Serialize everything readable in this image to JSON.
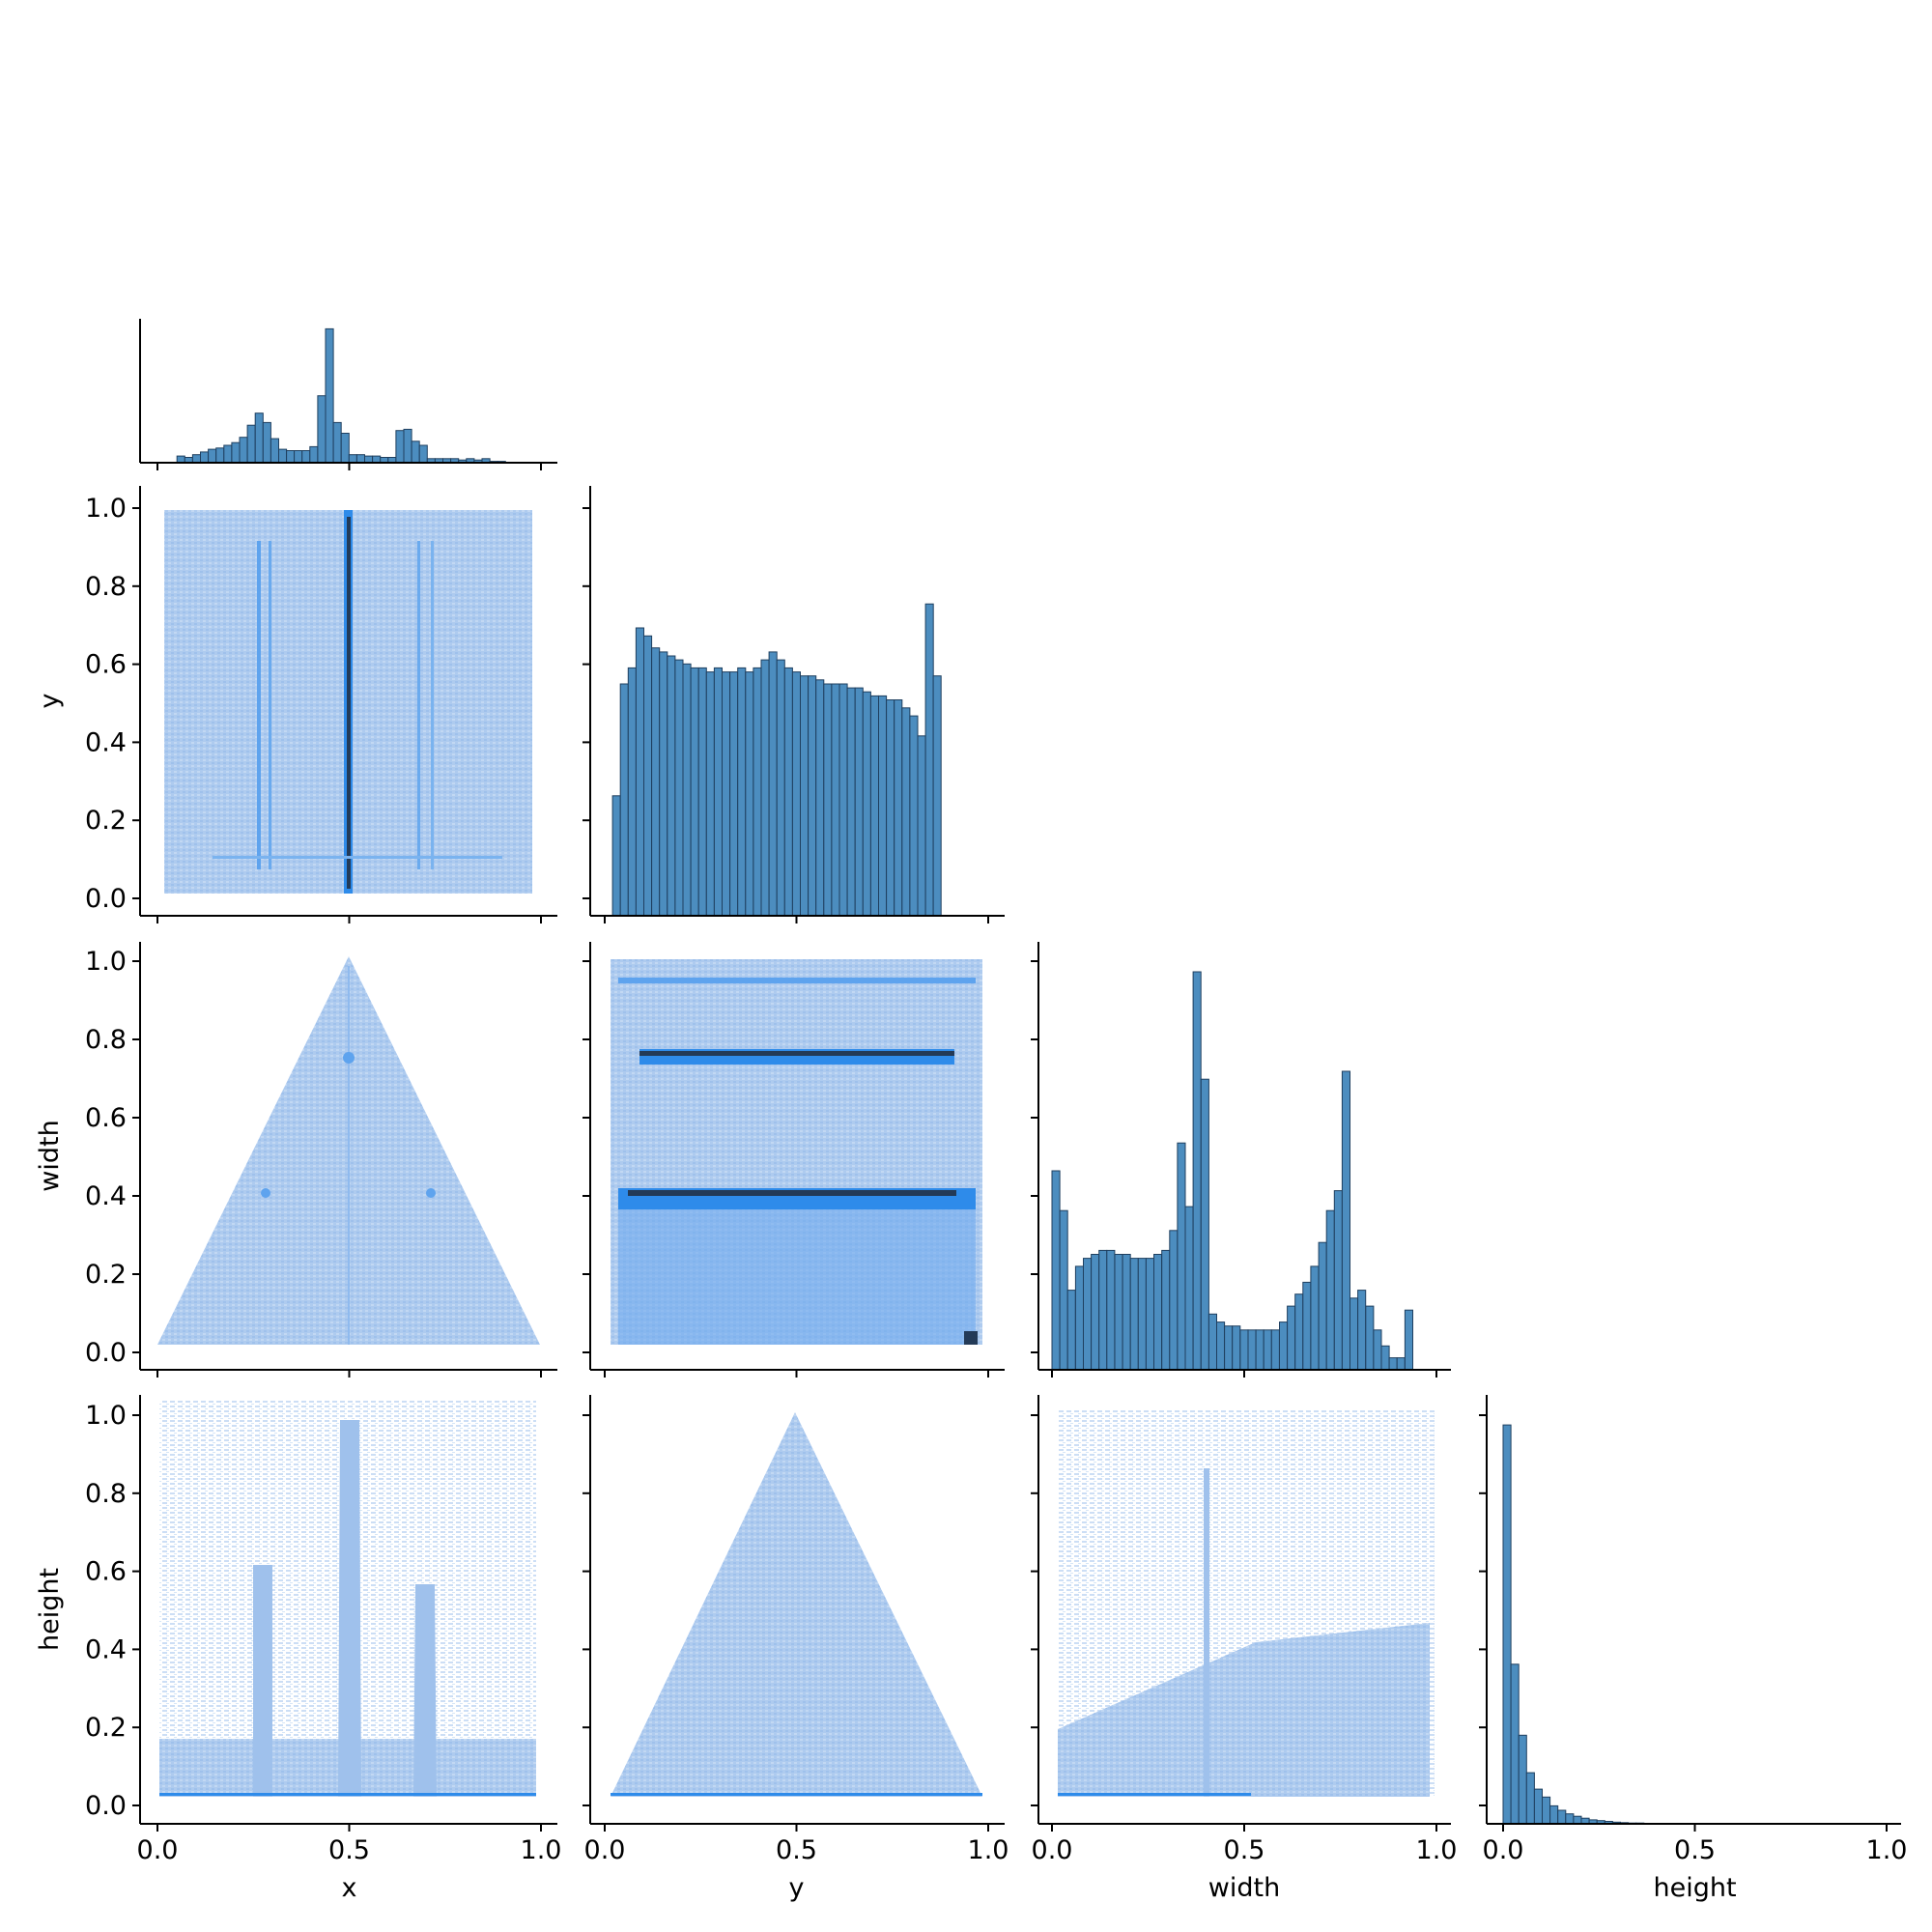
{
  "chart_data": {
    "type": "heatmap",
    "layout": "pairplot-corner",
    "variables": [
      "x",
      "y",
      "width",
      "height"
    ],
    "axis_labels": [
      "x",
      "y",
      "width",
      "height"
    ],
    "ticks": [
      "0.0",
      "0.2",
      "0.4",
      "0.6",
      "0.8",
      "1.0"
    ],
    "xticks": [
      "0.0",
      "0.5",
      "1.0"
    ],
    "range": [
      0,
      1
    ],
    "colors": {
      "hist_fill": "#4c8dbf",
      "hist_edge": "#1f3f5f",
      "heat_light": "#aecbef",
      "heat_mid": "#2e8bea",
      "heat_dark": "#233a57"
    },
    "diagonal_histograms": [
      {
        "variable": "x",
        "bin_width": 0.0204,
        "bin_start": 0.01,
        "counts": [
          0,
          0,
          0.05,
          0.04,
          0.06,
          0.08,
          0.1,
          0.11,
          0.13,
          0.15,
          0.19,
          0.28,
          0.37,
          0.3,
          0.18,
          0.1,
          0.09,
          0.09,
          0.09,
          0.12,
          0.5,
          1.0,
          0.3,
          0.22,
          0.06,
          0.06,
          0.05,
          0.05,
          0.04,
          0.04,
          0.24,
          0.25,
          0.16,
          0.13,
          0.03,
          0.03,
          0.03,
          0.03,
          0.02,
          0.03,
          0.02,
          0.03,
          0.01,
          0.01,
          0,
          0,
          0
        ]
      },
      {
        "variable": "y",
        "bin_width": 0.0204,
        "bin_start": 0.0,
        "counts": [
          0,
          0.3,
          0.58,
          0.62,
          0.72,
          0.7,
          0.67,
          0.66,
          0.65,
          0.64,
          0.63,
          0.62,
          0.62,
          0.61,
          0.62,
          0.61,
          0.61,
          0.62,
          0.61,
          0.62,
          0.64,
          0.66,
          0.64,
          0.62,
          0.61,
          0.6,
          0.6,
          0.59,
          0.58,
          0.58,
          0.58,
          0.57,
          0.57,
          0.56,
          0.55,
          0.55,
          0.54,
          0.54,
          0.52,
          0.5,
          0.45,
          0.78,
          0.6
        ]
      },
      {
        "variable": "width",
        "bin_width": 0.0204,
        "bin_start": 0.0,
        "counts": [
          0.5,
          0.4,
          0.2,
          0.26,
          0.28,
          0.29,
          0.3,
          0.3,
          0.29,
          0.29,
          0.28,
          0.28,
          0.28,
          0.29,
          0.3,
          0.35,
          0.57,
          0.41,
          1.0,
          0.73,
          0.14,
          0.12,
          0.11,
          0.11,
          0.1,
          0.1,
          0.1,
          0.1,
          0.1,
          0.12,
          0.16,
          0.19,
          0.22,
          0.26,
          0.32,
          0.4,
          0.45,
          0.75,
          0.18,
          0.2,
          0.16,
          0.1,
          0.06,
          0.03,
          0.03,
          0.15,
          0
        ]
      },
      {
        "variable": "height",
        "bin_width": 0.0204,
        "bin_start": 0.0,
        "counts": [
          1.0,
          0.4,
          0.222,
          0.128,
          0.087,
          0.067,
          0.045,
          0.034,
          0.025,
          0.019,
          0.014,
          0.01,
          0.008,
          0.006,
          0.004,
          0.003,
          0.002,
          0.002
        ]
      }
    ]
  }
}
